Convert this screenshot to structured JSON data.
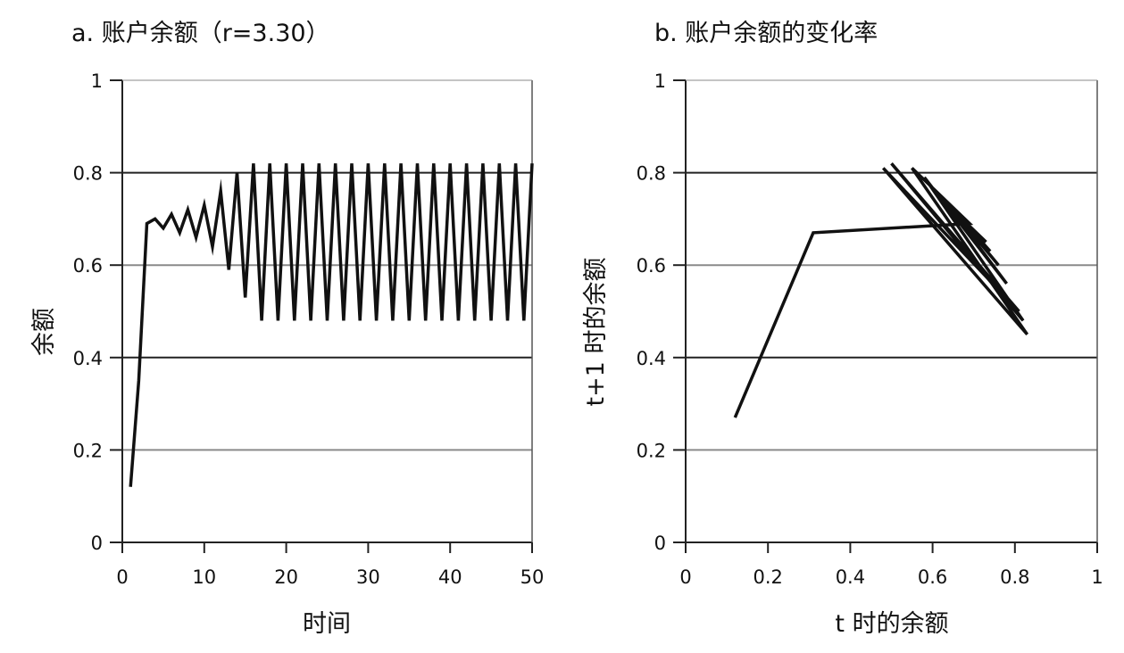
{
  "chart_data": [
    {
      "type": "line",
      "title": "a. 账户余额（r=3.30）",
      "xlabel": "时间",
      "ylabel": "余额",
      "xlim": [
        0,
        50
      ],
      "ylim": [
        0,
        1
      ],
      "x_ticks": [
        "0",
        "10",
        "20",
        "30",
        "40",
        "50"
      ],
      "y_ticks": [
        "0",
        "0.2",
        "0.4",
        "0.6",
        "0.8",
        "1"
      ],
      "grid": "horizontal",
      "series": [
        {
          "x": [
            1,
            2,
            3,
            4,
            5,
            6,
            7,
            8,
            9,
            10,
            11,
            12,
            13,
            14,
            15,
            16,
            17,
            18,
            19,
            20,
            21,
            22,
            23,
            24,
            25,
            26,
            27,
            28,
            29,
            30,
            31,
            32,
            33,
            34,
            35,
            36,
            37,
            38,
            39,
            40,
            41,
            42,
            43,
            44,
            45,
            46,
            47,
            48,
            49,
            50
          ],
          "values": [
            0.12,
            0.35,
            0.69,
            0.7,
            0.68,
            0.71,
            0.67,
            0.72,
            0.66,
            0.73,
            0.64,
            0.76,
            0.59,
            0.8,
            0.53,
            0.82,
            0.48,
            0.82,
            0.48,
            0.82,
            0.48,
            0.82,
            0.48,
            0.82,
            0.48,
            0.82,
            0.48,
            0.82,
            0.48,
            0.82,
            0.48,
            0.82,
            0.48,
            0.82,
            0.48,
            0.82,
            0.48,
            0.82,
            0.48,
            0.82,
            0.48,
            0.82,
            0.48,
            0.82,
            0.48,
            0.82,
            0.48,
            0.82,
            0.48,
            0.82
          ]
        }
      ]
    },
    {
      "type": "line",
      "title": "b. 账户余额的变化率",
      "xlabel": "t 时的余额",
      "ylabel": "t+1 时的余额",
      "xlim": [
        0,
        1
      ],
      "ylim": [
        0,
        1
      ],
      "x_ticks": [
        "0",
        "0.2",
        "0.4",
        "0.6",
        "0.8",
        "1"
      ],
      "y_ticks": [
        "0",
        "0.2",
        "0.4",
        "0.6",
        "0.8",
        "1"
      ],
      "grid": "horizontal",
      "series": [
        {
          "x": [
            0.12,
            0.31,
            0.69,
            0.55,
            0.83,
            0.48,
            0.81,
            0.5,
            0.82,
            0.58,
            0.78,
            0.62,
            0.76,
            0.64,
            0.74,
            0.66,
            0.73,
            0.67
          ],
          "values": [
            0.27,
            0.67,
            0.69,
            0.81,
            0.45,
            0.81,
            0.5,
            0.82,
            0.48,
            0.79,
            0.56,
            0.75,
            0.6,
            0.73,
            0.63,
            0.71,
            0.65,
            0.7
          ]
        }
      ]
    }
  ]
}
